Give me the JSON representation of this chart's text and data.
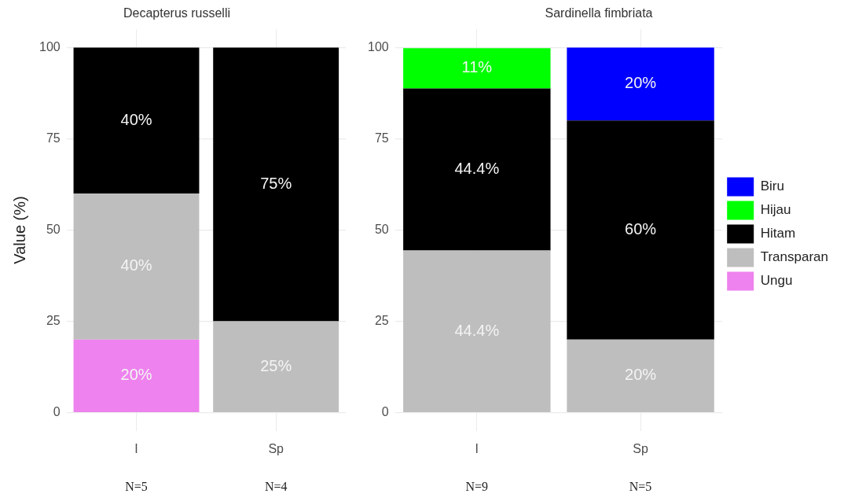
{
  "chart_data": [
    {
      "type": "bar",
      "title": "Decapterus russelli",
      "ylabel": "Value (%)",
      "categories": [
        "I",
        "Sp"
      ],
      "stacked": true,
      "ylim": [
        -5,
        105
      ],
      "yticks": [
        0,
        25,
        50,
        75,
        100
      ],
      "grid": true,
      "legend": false,
      "series": [
        {
          "color": "#ee82ee",
          "values": [
            20,
            null
          ],
          "value_labels": [
            "20%",
            null
          ]
        },
        {
          "color": "#bebebe",
          "values": [
            40,
            25
          ],
          "value_labels": [
            "40%",
            "25%"
          ]
        },
        {
          "color": "#000000",
          "values": [
            40,
            75
          ],
          "value_labels": [
            "40%",
            "75%"
          ]
        }
      ],
      "annotations": [
        "N=5",
        "N=4"
      ]
    },
    {
      "type": "bar",
      "title": "Sardinella fimbriata",
      "categories": [
        "I",
        "Sp"
      ],
      "stacked": true,
      "ylim": [
        -5,
        105
      ],
      "yticks": [
        0,
        25,
        50,
        75,
        100
      ],
      "grid": true,
      "legend": "right",
      "series": [
        {
          "name": "Ungu",
          "color": "#ee82ee",
          "values": [
            null,
            null
          ],
          "value_labels": [
            null,
            null
          ]
        },
        {
          "name": "Transparan",
          "color": "#bebebe",
          "values": [
            44.4,
            20
          ],
          "value_labels": [
            "44.4%",
            "20%"
          ]
        },
        {
          "name": "Hitam",
          "color": "#000000",
          "values": [
            44.4,
            60
          ],
          "value_labels": [
            "44.4%",
            "60%"
          ]
        },
        {
          "name": "Hijau",
          "color": "#00ff00",
          "values": [
            11,
            null
          ],
          "value_labels": [
            "11%",
            null
          ]
        },
        {
          "name": "Biru",
          "color": "#0000ff",
          "values": [
            null,
            20
          ],
          "value_labels": [
            null,
            "20%"
          ]
        }
      ],
      "annotations": [
        "N=9",
        "N=5"
      ]
    }
  ]
}
